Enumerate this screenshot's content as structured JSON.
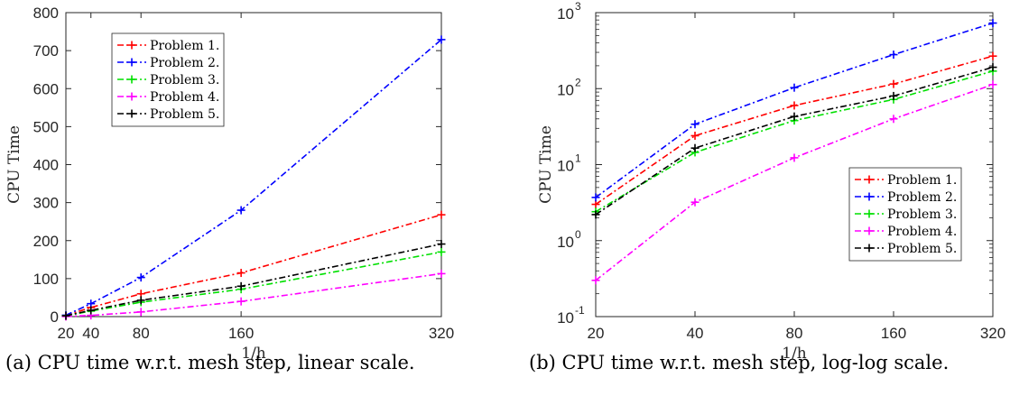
{
  "chart_data": [
    {
      "id": "a",
      "type": "line",
      "xlabel": "1/h",
      "ylabel": "CPU Time",
      "x": [
        20,
        40,
        80,
        160,
        320
      ],
      "xticks": [
        "20",
        "40",
        "80",
        "160",
        "320"
      ],
      "xlim": [
        20,
        320
      ],
      "ylim": [
        0,
        800
      ],
      "yticks": [
        "0",
        "100",
        "200",
        "300",
        "400",
        "500",
        "600",
        "700",
        "800"
      ],
      "xscale": "linear",
      "yscale": "linear",
      "grid": false,
      "legend_position": "top-left",
      "series": [
        {
          "name": "Problem 1.",
          "color": "#ff0000",
          "values": [
            3,
            24,
            60,
            115,
            268
          ]
        },
        {
          "name": "Problem 2.",
          "color": "#0000ff",
          "values": [
            3.7,
            34,
            103,
            280,
            729
          ]
        },
        {
          "name": "Problem 3.",
          "color": "#00e000",
          "values": [
            2.4,
            14.5,
            38,
            72,
            170
          ]
        },
        {
          "name": "Problem 4.",
          "color": "#ff00ff",
          "values": [
            0.3,
            3.2,
            12.3,
            40,
            113
          ]
        },
        {
          "name": "Problem 5.",
          "color": "#000000",
          "values": [
            2.2,
            16.5,
            43,
            80,
            191
          ]
        }
      ],
      "caption": "(a) CPU time w.r.t. mesh step, linear scale."
    },
    {
      "id": "b",
      "type": "line",
      "xlabel": "1/h",
      "ylabel": "CPU Time",
      "x": [
        20,
        40,
        80,
        160,
        320
      ],
      "xticks": [
        "20",
        "40",
        "80",
        "160",
        "320"
      ],
      "xlim": [
        20,
        320
      ],
      "ylim": [
        0.1,
        1000
      ],
      "yticks": [
        {
          "base": "10",
          "exp": "-1"
        },
        {
          "base": "10",
          "exp": "0"
        },
        {
          "base": "10",
          "exp": "1"
        },
        {
          "base": "10",
          "exp": "2"
        },
        {
          "base": "10",
          "exp": "3"
        }
      ],
      "xscale": "log",
      "yscale": "log",
      "grid": false,
      "legend_position": "right",
      "series": [
        {
          "name": "Problem 1.",
          "color": "#ff0000",
          "values": [
            3,
            24,
            60,
            115,
            268
          ]
        },
        {
          "name": "Problem 2.",
          "color": "#0000ff",
          "values": [
            3.7,
            34,
            103,
            280,
            729
          ]
        },
        {
          "name": "Problem 3.",
          "color": "#00e000",
          "values": [
            2.4,
            14.5,
            38,
            72,
            170
          ]
        },
        {
          "name": "Problem 4.",
          "color": "#ff00ff",
          "values": [
            0.3,
            3.2,
            12.3,
            40,
            113
          ]
        },
        {
          "name": "Problem 5.",
          "color": "#000000",
          "values": [
            2.2,
            16.5,
            43,
            80,
            191
          ]
        }
      ],
      "caption": "(b) CPU time w.r.t. mesh step, log-log scale."
    }
  ]
}
